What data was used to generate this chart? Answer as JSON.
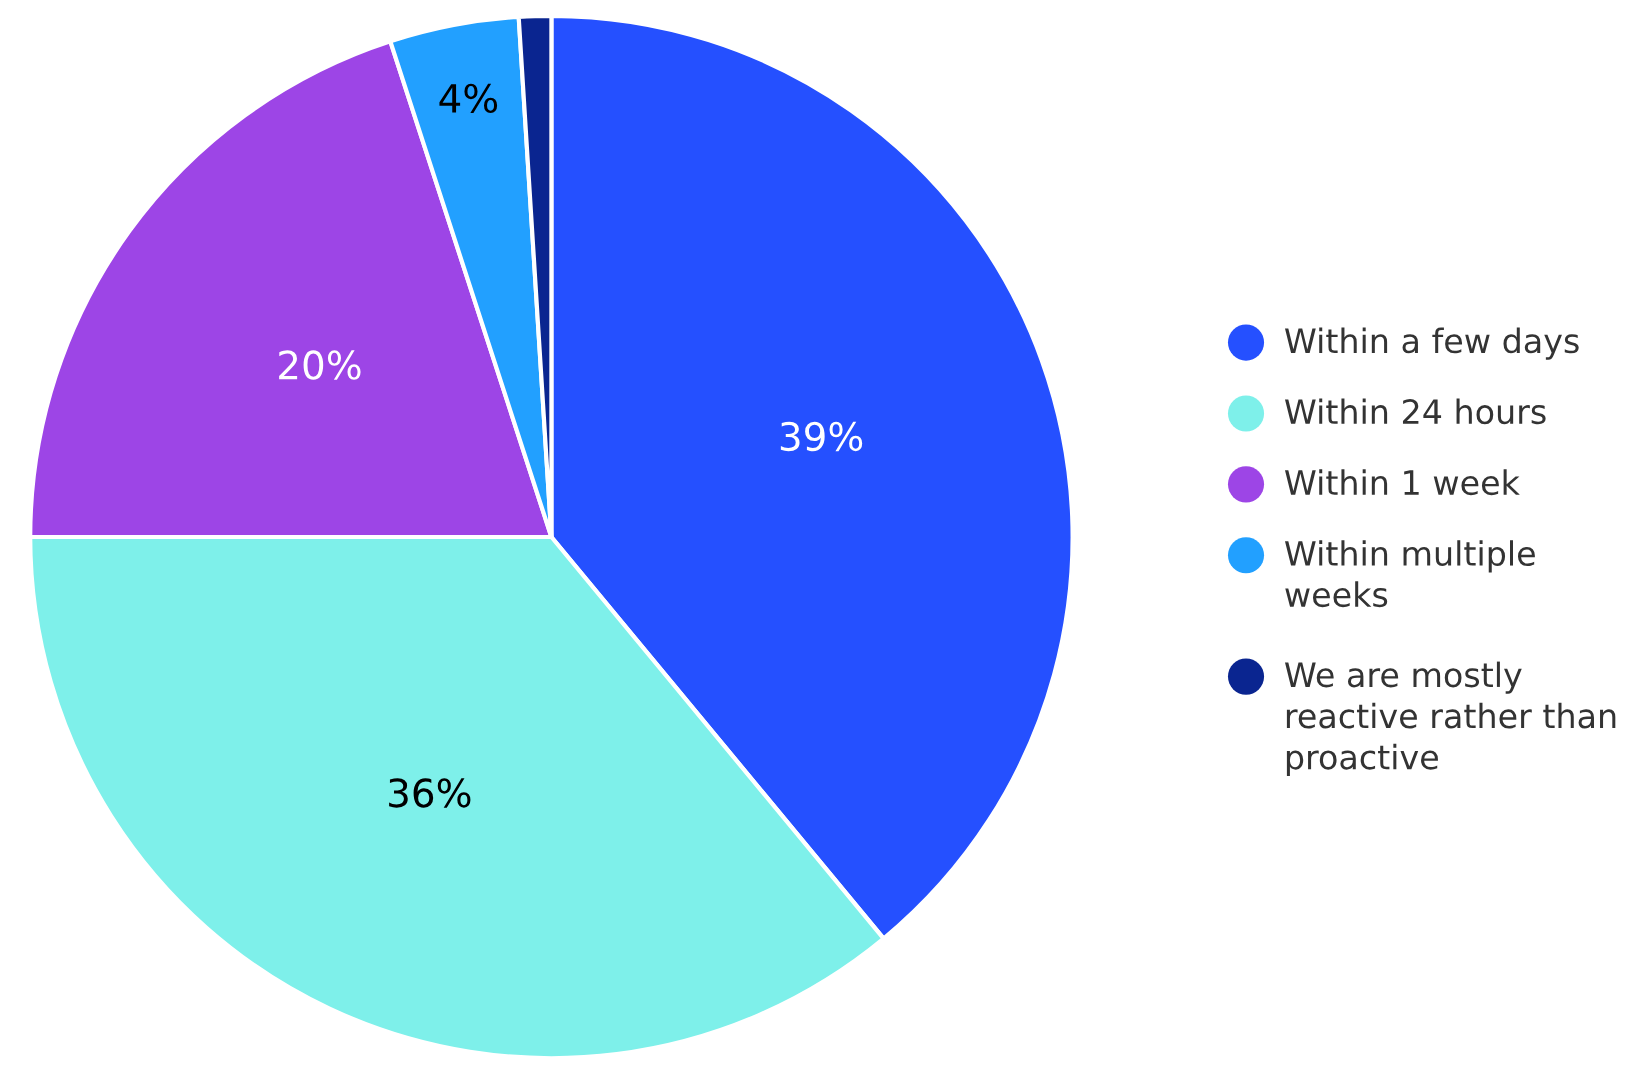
{
  "chart_data": {
    "type": "pie",
    "categories": [
      "Within a few days",
      "Within 24 hours",
      "Within 1 week",
      "Within multiple weeks",
      "We are mostly reactive rather than proactive"
    ],
    "values": [
      39,
      36,
      20,
      4,
      1
    ],
    "value_labels": [
      "39%",
      "36%",
      "20%",
      "4%",
      null
    ],
    "colors": [
      "#2550ff",
      "#7ef0ea",
      "#9d45e6",
      "#22a0ff",
      "#0a2590"
    ],
    "legend": "right"
  }
}
